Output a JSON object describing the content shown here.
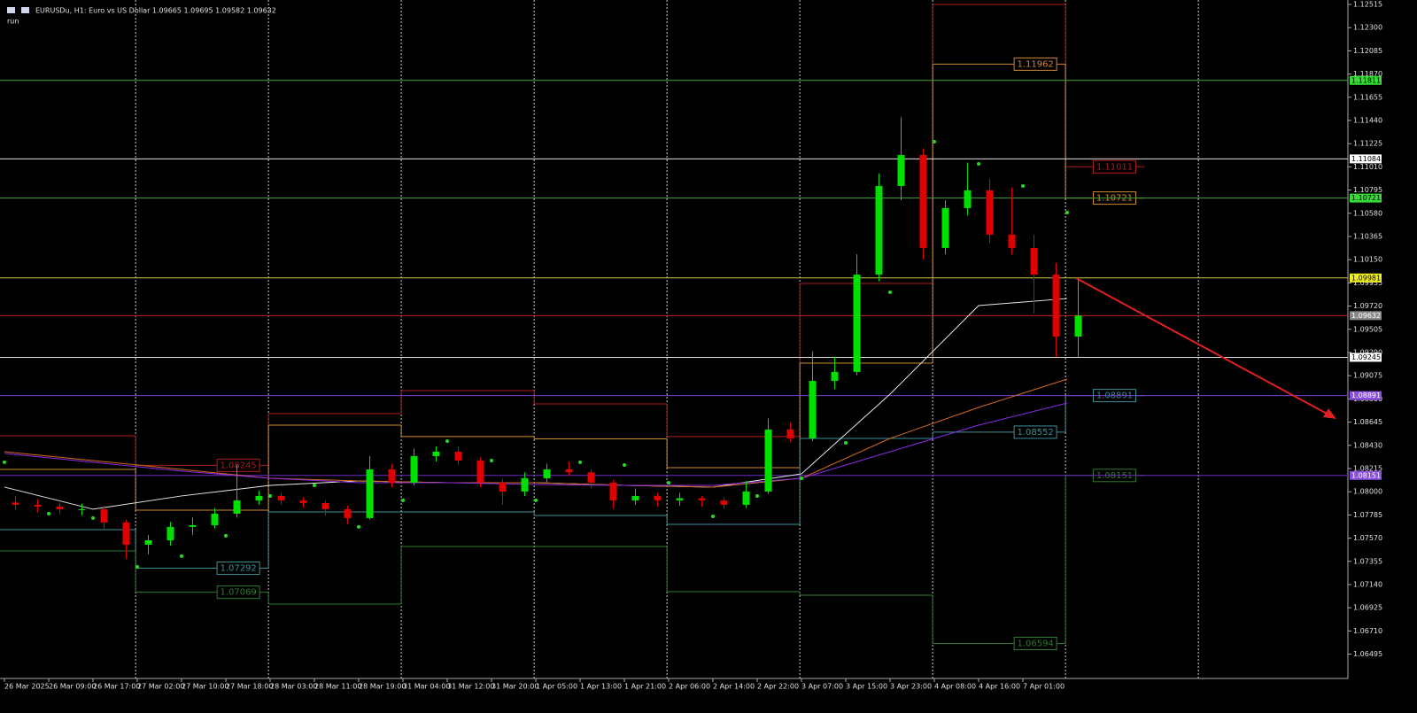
{
  "chart_data": {
    "type": "candlestick",
    "header": "EURUSDu, H1:  Euro vs US Dollar  1.09665 1.09695 1.09582 1.09632",
    "subheader": "run",
    "xlim": [
      -0.8,
      242.72
    ],
    "ylim": [
      1.0627,
      1.12515
    ],
    "xticks": [
      {
        "value": 0,
        "label": "26 Mar 2025"
      },
      {
        "value": 8,
        "label": "26 Mar 09:00"
      },
      {
        "value": 16,
        "label": "26 Mar 17:00"
      },
      {
        "value": 24,
        "label": "27 Mar 02:00"
      },
      {
        "value": 32,
        "label": "27 Mar 10:00"
      },
      {
        "value": 40,
        "label": "27 Mar 18:00"
      },
      {
        "value": 48,
        "label": "28 Mar 03:00"
      },
      {
        "value": 56,
        "label": "28 Mar 11:00"
      },
      {
        "value": 64,
        "label": "28 Mar 19:00"
      },
      {
        "value": 72,
        "label": "31 Mar 04:00"
      },
      {
        "value": 80,
        "label": "31 Mar 12:00"
      },
      {
        "value": 88,
        "label": "31 Mar 20:00"
      },
      {
        "value": 96,
        "label": "1 Apr 05:00"
      },
      {
        "value": 104,
        "label": "1 Apr 13:00"
      },
      {
        "value": 112,
        "label": "1 Apr 21:00"
      },
      {
        "value": 120,
        "label": "2 Apr 06:00"
      },
      {
        "value": 128,
        "label": "2 Apr 14:00"
      },
      {
        "value": 136,
        "label": "2 Apr 22:00"
      },
      {
        "value": 144,
        "label": "3 Apr 07:00"
      },
      {
        "value": 152,
        "label": "3 Apr 15:00"
      },
      {
        "value": 160,
        "label": "3 Apr 23:00"
      },
      {
        "value": 168,
        "label": "4 Apr 08:00"
      },
      {
        "value": 176,
        "label": "4 Apr 16:00"
      },
      {
        "value": 184,
        "label": "7 Apr 01:00"
      }
    ],
    "yticks": [
      1.12515,
      {
        "value": 1.123,
        "label": "1.12300"
      },
      1.12085,
      {
        "value": 1.1187,
        "label": "1.11870"
      },
      1.11655,
      {
        "value": 1.1144,
        "label": "1.11440"
      },
      1.11225,
      {
        "value": 1.1101,
        "label": "1.11010"
      },
      1.10795,
      {
        "value": 1.1058,
        "label": "1.10580"
      },
      1.10365,
      {
        "value": 1.1015,
        "label": "1.10150"
      },
      1.09935,
      {
        "value": 1.0972,
        "label": "1.09720"
      },
      1.09505,
      {
        "value": 1.0929,
        "label": "1.09290"
      },
      1.09075,
      {
        "value": 1.0886,
        "label": "1.08860"
      },
      1.08645,
      {
        "value": 1.0843,
        "label": "1.08430"
      },
      1.08215,
      {
        "value": 1.08,
        "label": "1.08000"
      },
      1.07785,
      {
        "value": 1.0757,
        "label": "1.07570"
      },
      1.07355,
      {
        "value": 1.0714,
        "label": "1.07140"
      },
      1.06925,
      {
        "value": 1.0671,
        "label": "1.06710"
      },
      1.06495
    ],
    "separators": [
      23.7,
      47.7,
      71.7,
      95.7,
      119.7,
      143.7,
      167.7,
      191.7,
      215.7
    ],
    "up_color": "#00e000",
    "down_color": "#e00000",
    "candles": {
      "x": [
        2,
        6,
        10,
        14,
        18,
        22,
        26,
        30,
        34,
        38,
        42,
        46,
        50,
        54,
        58,
        62,
        66,
        70,
        74,
        78,
        82,
        86,
        90,
        94,
        98,
        102,
        106,
        110,
        114,
        118,
        122,
        126,
        130,
        134,
        138,
        142,
        146,
        150,
        154,
        158,
        162,
        166,
        170,
        174,
        178,
        182,
        186,
        190,
        194
      ],
      "open": [
        1.079,
        1.07879,
        1.07862,
        1.07838,
        1.07838,
        1.07715,
        1.07509,
        1.0755,
        1.07674,
        1.0769,
        1.07797,
        1.0792,
        1.07961,
        1.0792,
        1.07895,
        1.07838,
        1.07756,
        1.08207,
        1.08084,
        1.0833,
        1.08371,
        1.08289,
        1.08084,
        1.08002,
        1.08125,
        1.08207,
        1.0818,
        1.08084,
        1.0792,
        1.07961,
        1.0792,
        1.0794,
        1.0792,
        1.07879,
        1.08002,
        1.08576,
        1.08494,
        1.09027,
        1.0911,
        1.10012,
        1.10833,
        1.1112,
        1.10259,
        1.10628,
        1.10792,
        1.10382,
        1.10259,
        1.10012,
        1.09438
      ],
      "high": [
        1.0796,
        1.0793,
        1.079,
        1.0789,
        1.0787,
        1.0774,
        1.076,
        1.0772,
        1.0776,
        1.0785,
        1.0825,
        1.0801,
        1.0799,
        1.0795,
        1.0792,
        1.0787,
        1.0833,
        1.0826,
        1.084,
        1.0842,
        1.0842,
        1.0832,
        1.0812,
        1.0818,
        1.0826,
        1.0828,
        1.0821,
        1.0811,
        1.0803,
        1.0799,
        1.0799,
        1.0796,
        1.0795,
        1.081,
        1.0868,
        1.0864,
        1.093,
        1.0925,
        1.102,
        1.1095,
        1.1147,
        1.1118,
        1.107,
        1.1105,
        1.109,
        1.1082,
        1.1038,
        1.1012,
        1.09981
      ],
      "low": [
        1.0783,
        1.0781,
        1.0779,
        1.0778,
        1.0765,
        1.0738,
        1.0742,
        1.075,
        1.076,
        1.0766,
        1.0776,
        1.0788,
        1.0788,
        1.0785,
        1.0778,
        1.077,
        1.0774,
        1.0804,
        1.0806,
        1.0828,
        1.0825,
        1.0804,
        1.0788,
        1.0796,
        1.0809,
        1.0815,
        1.0803,
        1.0784,
        1.0788,
        1.0786,
        1.0787,
        1.0786,
        1.0784,
        1.0785,
        1.0798,
        1.0846,
        1.0847,
        1.0895,
        1.0908,
        1.0995,
        1.107,
        1.1015,
        1.102,
        1.1056,
        1.103,
        1.102,
        1.0965,
        1.0925,
        1.0925
      ],
      "close": [
        1.07879,
        1.07862,
        1.07838,
        1.07838,
        1.07715,
        1.07509,
        1.0755,
        1.07674,
        1.0769,
        1.07797,
        1.0792,
        1.07961,
        1.0792,
        1.07895,
        1.07838,
        1.07756,
        1.08207,
        1.08084,
        1.0833,
        1.08371,
        1.08289,
        1.08084,
        1.08002,
        1.08125,
        1.08207,
        1.0818,
        1.08084,
        1.0792,
        1.07961,
        1.0792,
        1.0794,
        1.0792,
        1.07879,
        1.08002,
        1.08576,
        1.08494,
        1.09027,
        1.0911,
        1.10012,
        1.10833,
        1.1112,
        1.10259,
        1.10628,
        1.10792,
        1.10382,
        1.10259,
        1.10012,
        1.09438,
        1.09632
      ]
    },
    "lines": [
      {
        "color": "#e8e8e8",
        "x": [
          0,
          16,
          32,
          48,
          64,
          80,
          96,
          112,
          128,
          144,
          160,
          176,
          192
        ],
        "values": [
          1.08043,
          1.07838,
          1.07961,
          1.08059,
          1.081,
          1.08084,
          1.08084,
          1.08059,
          1.08043,
          1.08166,
          1.08904,
          1.09725,
          1.0979
        ]
      },
      {
        "color": "#d2691e",
        "x": [
          0,
          16,
          32,
          48,
          64,
          80,
          96,
          112,
          128,
          144,
          160,
          176,
          192
        ],
        "values": [
          1.08371,
          1.08289,
          1.08207,
          1.08125,
          1.081,
          1.08084,
          1.08084,
          1.08059,
          1.08043,
          1.08125,
          1.08494,
          1.08781,
          1.09044
        ]
      },
      {
        "color": "#8a2be2",
        "x": [
          0,
          16,
          32,
          48,
          64,
          80,
          96,
          112,
          128,
          144,
          160,
          176,
          192
        ],
        "values": [
          1.08355,
          1.08273,
          1.08191,
          1.08125,
          1.08084,
          1.08084,
          1.08067,
          1.08059,
          1.08059,
          1.08125,
          1.08371,
          1.08617,
          1.08822
        ]
      }
    ],
    "sar": {
      "color": "#22dd22",
      "x": [
        0,
        8,
        16,
        24,
        32,
        40,
        48,
        56,
        64,
        72,
        80,
        88,
        96,
        104,
        112,
        120,
        128,
        136,
        144,
        152,
        160,
        168,
        176,
        184,
        192
      ],
      "values": [
        1.08273,
        1.07797,
        1.07756,
        1.07304,
        1.07403,
        1.07592,
        1.07961,
        1.08059,
        1.07674,
        1.0792,
        1.08469,
        1.08289,
        1.0792,
        1.08273,
        1.08248,
        1.08084,
        1.07772,
        1.07961,
        1.08125,
        1.08453,
        1.09848,
        1.11243,
        1.11038,
        1.10833,
        1.10587
      ]
    },
    "pivots": {
      "day_bounds": [
        -0.8,
        23.7,
        47.7,
        71.7,
        95.7,
        119.7,
        143.7,
        167.7,
        191.7,
        206
      ],
      "series": [
        {
          "color": "#b01c1c",
          "values": [
            1.08519,
            1.08245,
            1.08724,
            1.08937,
            1.08814,
            1.08511,
            1.0993,
            1.12515,
            1.11011
          ],
          "value_labels": [
            null,
            "1.08245",
            null,
            null,
            null,
            null,
            null,
            null,
            "1.11011"
          ]
        },
        {
          "color": "#d08a30",
          "values": [
            1.08207,
            1.07829,
            1.08617,
            1.08511,
            1.0849,
            1.08223,
            1.09191,
            1.11962,
            1.10721
          ],
          "value_labels": [
            null,
            null,
            null,
            null,
            null,
            null,
            null,
            "1.11962",
            "1.10721"
          ]
        },
        {
          "color": "#3a8f96",
          "values": [
            1.07649,
            1.07292,
            1.07813,
            1.07813,
            1.0778,
            1.07698,
            1.08494,
            1.08552,
            1.08891
          ],
          "value_labels": [
            null,
            "1.07292",
            null,
            null,
            null,
            null,
            null,
            "1.08552",
            "1.08891"
          ]
        },
        {
          "color": "#2e7a2e",
          "values": [
            1.07452,
            1.07069,
            1.06959,
            1.07493,
            1.07493,
            1.07074,
            1.07041,
            1.06594,
            1.08151
          ],
          "value_labels": [
            null,
            "1.07069",
            null,
            null,
            null,
            null,
            null,
            "1.06594",
            "1.08151"
          ]
        }
      ]
    },
    "levels": [
      {
        "value": 1.11811,
        "color": "#3da53d",
        "label_color": "#33dd33"
      },
      {
        "value": 1.11084,
        "color": "#e0e0e0",
        "label_color": "#ffffff"
      },
      {
        "value": 1.10721,
        "color": "#3da53d",
        "label_color": "#33dd33"
      },
      {
        "value": 1.09981,
        "color": "#c8c84a",
        "label_color": "#f0f020"
      },
      {
        "value": 1.09632,
        "color": "#c02020",
        "label_color": "#888888"
      },
      {
        "value": 1.09245,
        "color": "#e0e0e0",
        "label_color": "#ffffff"
      },
      {
        "value": 1.08891,
        "color": "#7b3fd0",
        "label_color": "#8a4fe0"
      },
      {
        "value": 1.08151,
        "color": "#6a2bbf",
        "label_color": "#8a4fe0"
      }
    ]
  }
}
